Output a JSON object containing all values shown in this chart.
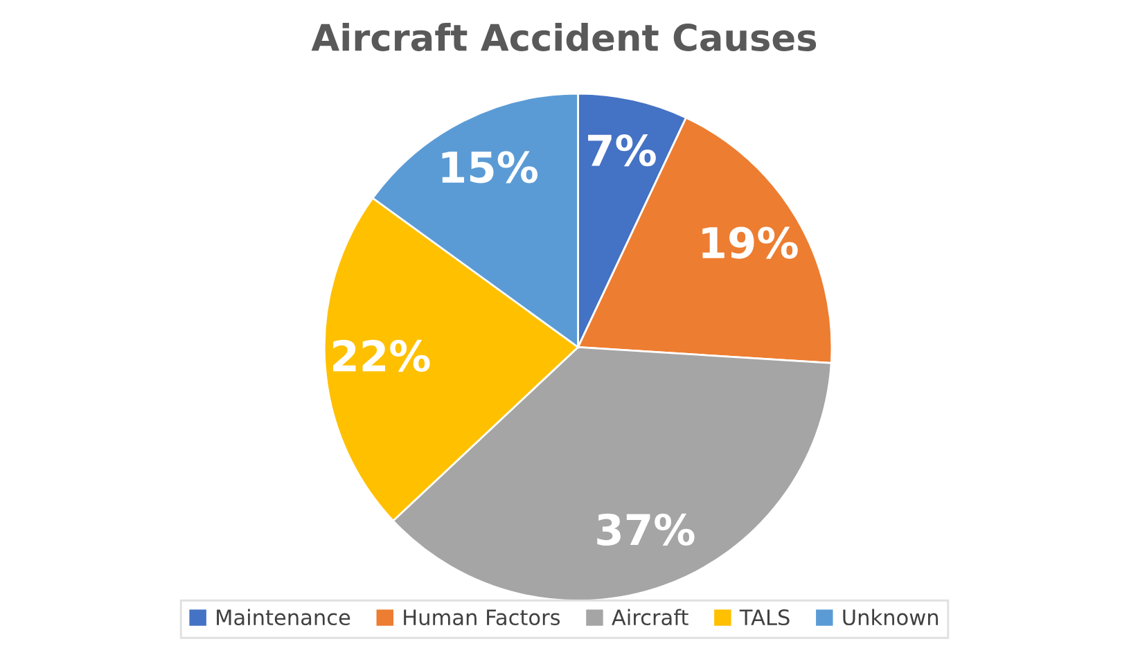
{
  "chart_data": {
    "type": "pie",
    "title": "Aircraft Accident Causes",
    "categories": [
      "Maintenance",
      "Human Factors",
      "Aircraft",
      "TALS",
      "Unknown"
    ],
    "values": [
      7,
      19,
      37,
      22,
      15
    ],
    "colors": [
      "#4472c4",
      "#ed7d31",
      "#a5a5a5",
      "#ffc000",
      "#5b9bd5"
    ],
    "value_labels": [
      "7%",
      "19%",
      "37%",
      "22%",
      "15%"
    ],
    "legend": "bottom"
  }
}
